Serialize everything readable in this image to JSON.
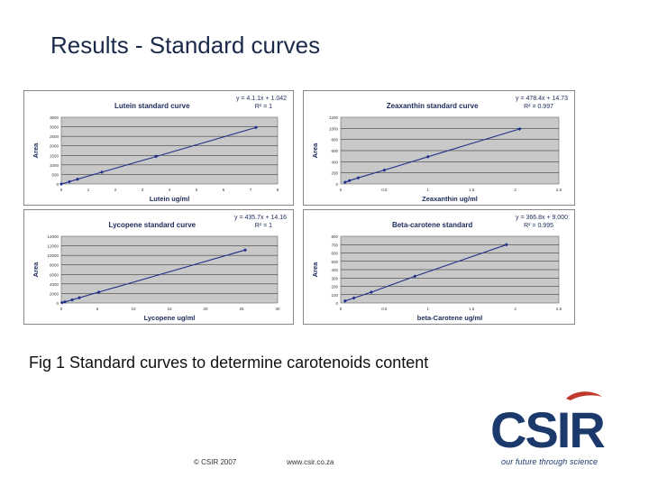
{
  "slide": {
    "title": "Results - Standard curves",
    "caption": "Fig 1 Standard curves to determine carotenoids content",
    "footer_copyright": "© CSIR 2007",
    "footer_url": "www.csir.co.za",
    "logo_text": "CSIR",
    "logo_tagline": "our future through science"
  },
  "colors": {
    "plot_bg": "#c8c8c8",
    "line": "#1f2f8a",
    "marker": "#1f2f8a",
    "panel_border": "#888888"
  },
  "chart_data": [
    {
      "type": "line",
      "title": "Lutein standard curve",
      "equation": "y = 4.1.1x + 1.042",
      "r2": "R² = 1",
      "xlabel": "Lutein ug/ml",
      "ylabel": "Area",
      "x": [
        0,
        0.3,
        0.6,
        1.5,
        3.5,
        7.2
      ],
      "y": [
        0,
        120,
        250,
        620,
        1440,
        2960
      ],
      "xlim": [
        0,
        8
      ],
      "ylim": [
        0,
        3500
      ],
      "xticks": [
        "0",
        "1",
        "2",
        "3",
        "4",
        "5",
        "6",
        "7",
        "8"
      ],
      "yticks": [
        "0",
        "500",
        "1000",
        "1500",
        "2000",
        "2500",
        "3000",
        "3500"
      ]
    },
    {
      "type": "line",
      "title": "Zeaxanthin standard curve",
      "equation": "y = 478.4x + 14.73",
      "r2": "R² = 0.997",
      "xlabel": "Zeaxanthin ug/ml",
      "ylabel": "Area",
      "x": [
        0.05,
        0.1,
        0.2,
        0.5,
        1.0,
        2.05
      ],
      "y": [
        30,
        60,
        110,
        250,
        490,
        990
      ],
      "xlim": [
        0,
        2.5
      ],
      "ylim": [
        0,
        1200
      ],
      "xticks": [
        "0",
        "0.5",
        "1",
        "1.5",
        "2",
        "2.5"
      ],
      "yticks": [
        "0",
        "200",
        "400",
        "600",
        "800",
        "1000",
        "1200"
      ]
    },
    {
      "type": "line",
      "title": "Lycopene standard curve",
      "equation": "y = 435.7x + 14.16",
      "r2": "R² = 1",
      "xlabel": "Lycopene ug/ml",
      "ylabel": "Area",
      "x": [
        0.1,
        0.5,
        1.5,
        2.5,
        5.2,
        25.5
      ],
      "y": [
        60,
        230,
        670,
        1100,
        2280,
        11120
      ],
      "xlim": [
        0,
        30
      ],
      "ylim": [
        0,
        14000
      ],
      "xticks": [
        "0",
        "5",
        "10",
        "15",
        "20",
        "25",
        "30"
      ],
      "yticks": [
        "0",
        "2000",
        "4000",
        "6000",
        "8000",
        "10000",
        "12000",
        "14000"
      ]
    },
    {
      "type": "line",
      "title": "Beta-carotene standard",
      "equation": "y = 366.8x + 9.000",
      "r2": "R² = 0.995",
      "xlabel": "beta-Carotene ug/ml",
      "ylabel": "Area",
      "x": [
        0.05,
        0.15,
        0.35,
        0.85,
        1.9
      ],
      "y": [
        25,
        60,
        130,
        320,
        700
      ],
      "xlim": [
        0,
        2.5
      ],
      "ylim": [
        0,
        800
      ],
      "xticks": [
        "0",
        "0.5",
        "1",
        "1.5",
        "2",
        "2.5"
      ],
      "yticks": [
        "0",
        "100",
        "200",
        "300",
        "400",
        "500",
        "600",
        "700",
        "800"
      ]
    }
  ]
}
